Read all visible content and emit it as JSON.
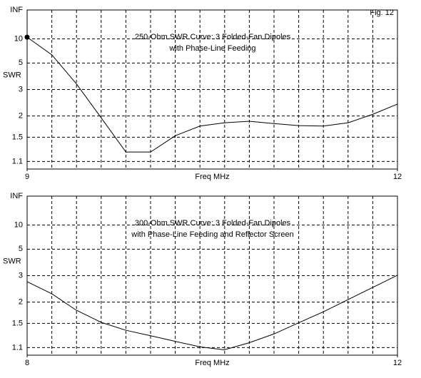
{
  "chart_data": [
    {
      "type": "line",
      "title": [
        "250-Ohm SWR Curve: 3 Folded-Fan Dipoles",
        "with Phase-Line Feeding"
      ],
      "annotation": "Fig. 12",
      "xlabel": "Freq MHz",
      "ylabel": "SWR",
      "x": [
        9,
        9.2,
        9.4,
        9.6,
        9.8,
        10,
        10.2,
        10.4,
        10.6,
        10.8,
        11,
        11.2,
        11.4,
        11.6,
        11.8,
        12
      ],
      "values": [
        10.7,
        6.1,
        3.3,
        1.95,
        1.24,
        1.24,
        1.53,
        1.74,
        1.82,
        1.86,
        1.8,
        1.75,
        1.74,
        1.82,
        2.05,
        2.38
      ],
      "color": "#000000",
      "start_marker": true,
      "xlim": [
        9,
        12
      ],
      "xticks": [
        9,
        12
      ],
      "xdivisions": 15,
      "ylim": [
        1,
        null
      ],
      "yscale": "reflection",
      "yticks": [
        1.1,
        1.5,
        2,
        3,
        5,
        10,
        {
          "value": null,
          "label": "INF"
        }
      ],
      "grid": true
    },
    {
      "type": "line",
      "title": [
        "300-Ohm SWR Curve: 3 Folded-Fan Dipoles",
        "with Phase-Line Feeding and Reflector Screen"
      ],
      "xlabel": "Freq MHz",
      "ylabel": "SWR",
      "x": [
        8,
        8.27,
        8.53,
        8.8,
        9.07,
        9.33,
        9.6,
        9.87,
        10.13,
        10.4,
        10.67,
        10.93,
        11.2,
        11.47,
        11.73,
        12
      ],
      "values": [
        2.72,
        2.25,
        1.79,
        1.52,
        1.37,
        1.28,
        1.19,
        1.11,
        1.07,
        1.17,
        1.31,
        1.51,
        1.75,
        2.08,
        2.48,
        3.02
      ],
      "color": "#000000",
      "start_marker": false,
      "xlim": [
        8,
        12
      ],
      "xticks": [
        8,
        12
      ],
      "xdivisions": 15,
      "ylim": [
        1,
        null
      ],
      "yscale": "reflection",
      "yticks": [
        1.1,
        1.5,
        2,
        3,
        5,
        10,
        {
          "value": null,
          "label": "INF"
        }
      ],
      "grid": true
    }
  ]
}
